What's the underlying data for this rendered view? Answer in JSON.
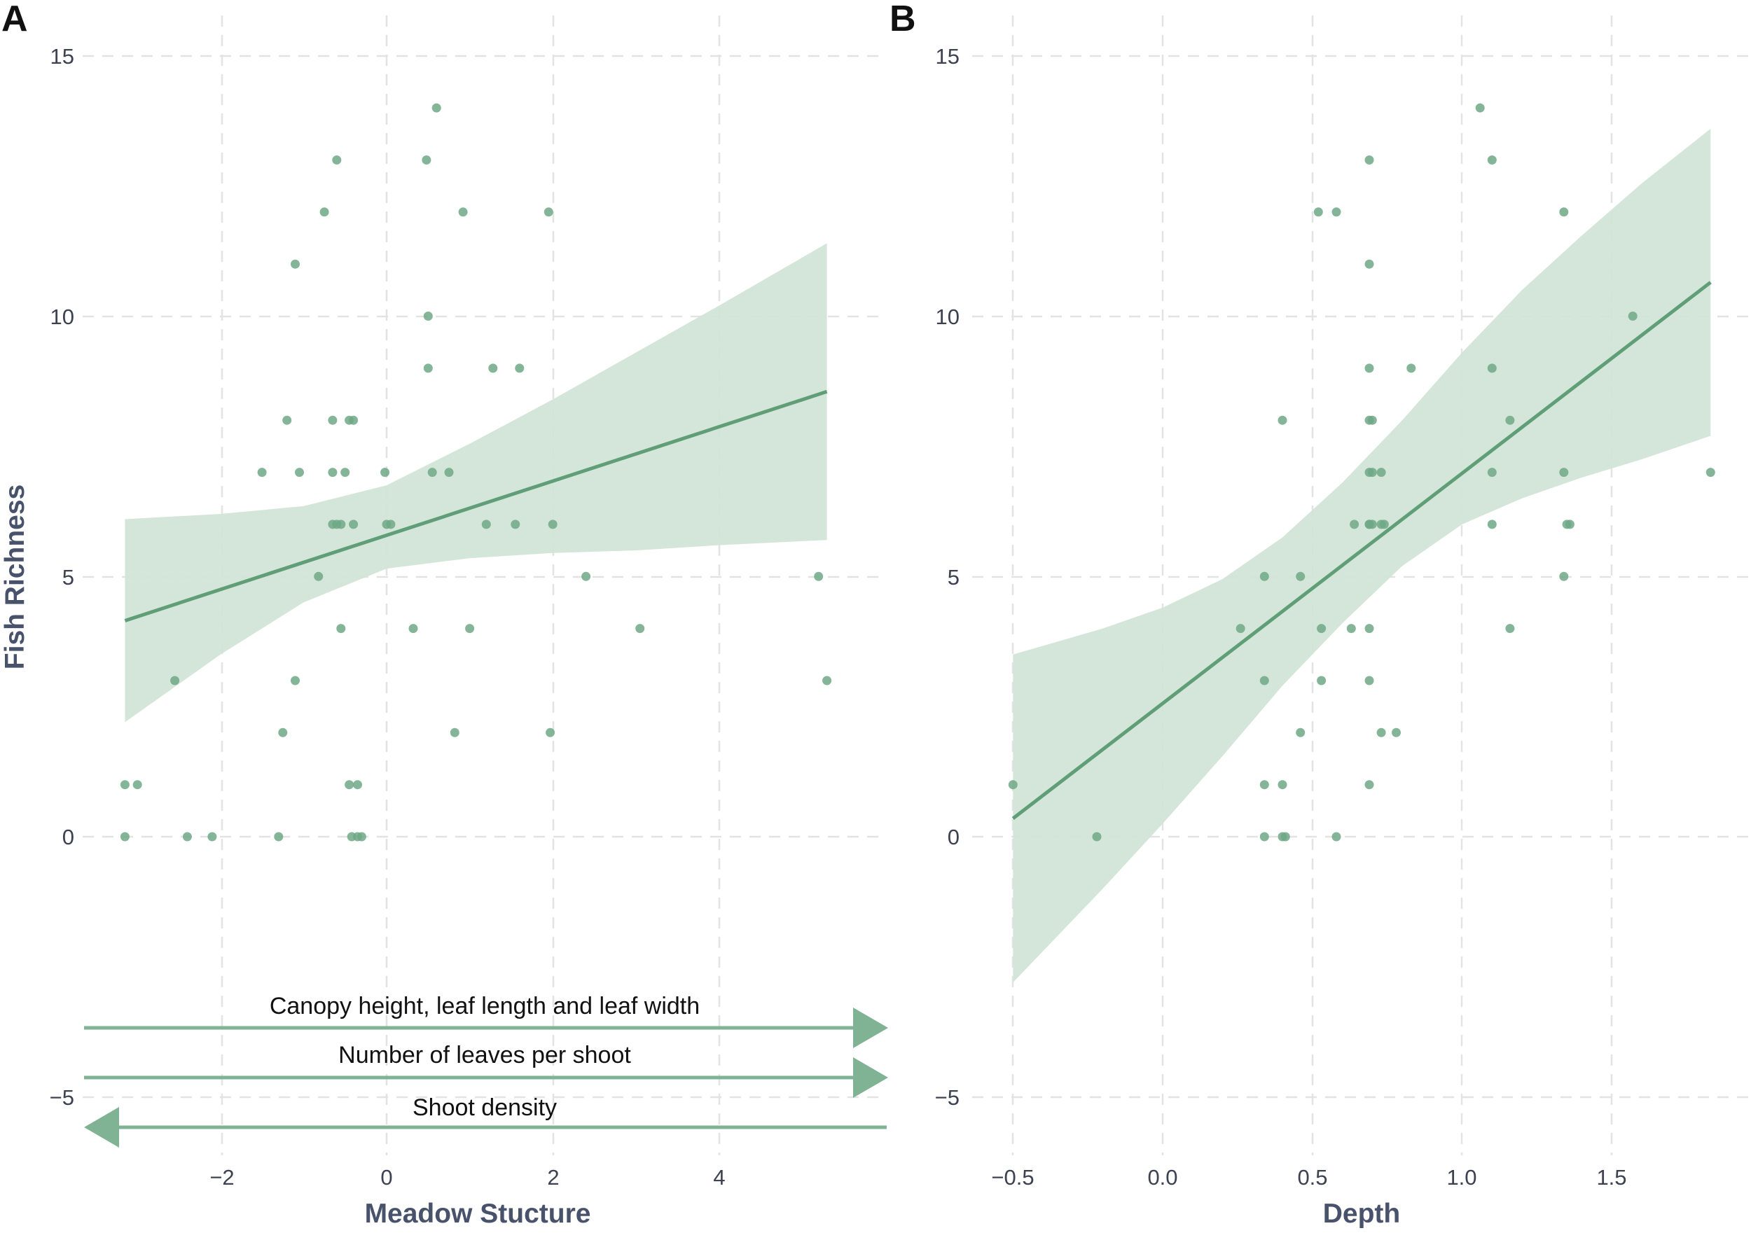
{
  "colors": {
    "point": "#6fa886",
    "line": "#5f9e77",
    "band": "#cfe3d5",
    "arrow": "#7fb394"
  },
  "chart_data": [
    {
      "type": "scatter",
      "panel_label": "A",
      "title": "",
      "xlabel": "Meadow Stucture",
      "ylabel": "Fish Richness",
      "xlim": [
        -3.6,
        6.2
      ],
      "ylim": [
        -6.2,
        15.4
      ],
      "xticks": [
        -2,
        0,
        2,
        4
      ],
      "yticks": [
        -5,
        0,
        5,
        10,
        15
      ],
      "xtick_labels": [
        "−2",
        "0",
        "2",
        "4"
      ],
      "ytick_labels": [
        "−5",
        "0",
        "5",
        "10",
        "15"
      ],
      "grid": true,
      "x": [
        -3.15,
        -3.0,
        -3.15,
        -2.4,
        -2.1,
        -2.55,
        -1.3,
        -1.25,
        -1.2,
        -1.1,
        -1.1,
        -1.5,
        -1.05,
        -0.75,
        -0.6,
        -0.65,
        -0.65,
        -0.6,
        -0.55,
        -0.5,
        -0.45,
        -0.4,
        -0.4,
        -0.45,
        -0.42,
        -0.35,
        -0.35,
        -0.3,
        -0.65,
        -0.82,
        -0.55,
        -0.02,
        0.0,
        0.05,
        0.32,
        0.6,
        0.48,
        0.5,
        0.5,
        0.55,
        0.75,
        0.82,
        0.92,
        1.0,
        1.2,
        1.28,
        1.55,
        1.6,
        1.95,
        2.0,
        1.97,
        2.4,
        3.05,
        5.2,
        5.3
      ],
      "y": [
        1,
        1,
        0,
        0,
        0,
        3,
        0,
        2,
        8,
        3,
        11,
        7,
        7,
        12,
        13,
        8,
        7,
        6,
        6,
        7,
        8,
        8,
        6,
        1,
        0,
        1,
        0,
        0,
        6,
        5,
        4,
        7,
        6,
        6,
        4,
        14,
        13,
        10,
        9,
        7,
        7,
        2,
        12,
        4,
        6,
        9,
        6,
        9,
        12,
        6,
        2,
        5,
        4,
        5,
        3
      ],
      "fit": {
        "x": [
          -3.15,
          5.3
        ],
        "y": [
          4.15,
          8.55
        ]
      },
      "ci_band": {
        "x": [
          -3.15,
          -2.0,
          -1.0,
          0.0,
          1.0,
          2.0,
          3.0,
          4.0,
          5.3
        ],
        "lower": [
          2.2,
          3.5,
          4.5,
          5.15,
          5.35,
          5.45,
          5.5,
          5.6,
          5.7
        ],
        "upper": [
          6.1,
          6.2,
          6.35,
          6.75,
          7.55,
          8.4,
          9.3,
          10.2,
          11.4
        ]
      },
      "annotations": [
        {
          "text": "Canopy height, leaf length and leaf width",
          "direction": "right"
        },
        {
          "text": "Number of leaves per shoot",
          "direction": "right"
        },
        {
          "text": "Shoot density",
          "direction": "left"
        }
      ]
    },
    {
      "type": "scatter",
      "panel_label": "B",
      "title": "",
      "xlabel": "Depth",
      "ylabel": "",
      "xlim": [
        -0.6,
        1.9
      ],
      "ylim": [
        -6.2,
        15.4
      ],
      "xticks": [
        -0.5,
        0.0,
        0.5,
        1.0,
        1.5
      ],
      "yticks": [
        -5,
        0,
        5,
        10,
        15
      ],
      "xtick_labels": [
        "−0.5",
        "0.0",
        "0.5",
        "1.0",
        "1.5"
      ],
      "ytick_labels": [
        "−5",
        "0",
        "5",
        "10",
        "15"
      ],
      "grid": true,
      "x": [
        -0.5,
        -0.22,
        0.26,
        0.34,
        0.34,
        0.34,
        0.34,
        0.4,
        0.4,
        0.4,
        0.41,
        0.46,
        0.46,
        0.52,
        0.53,
        0.53,
        0.58,
        0.58,
        0.63,
        0.64,
        0.69,
        0.69,
        0.69,
        0.69,
        0.69,
        0.69,
        0.69,
        0.69,
        0.69,
        0.69,
        0.7,
        0.7,
        0.7,
        0.73,
        0.73,
        0.73,
        0.74,
        0.78,
        0.83,
        1.06,
        1.1,
        1.1,
        1.1,
        1.1,
        1.16,
        1.16,
        1.34,
        1.34,
        1.34,
        1.35,
        1.36,
        1.57,
        1.83
      ],
      "y": [
        1,
        0,
        4,
        5,
        3,
        1,
        0,
        8,
        1,
        0,
        0,
        5,
        2,
        12,
        4,
        3,
        12,
        0,
        4,
        6,
        13,
        11,
        9,
        8,
        7,
        6,
        4,
        3,
        1,
        6,
        8,
        7,
        6,
        7,
        6,
        2,
        6,
        2,
        9,
        14,
        13,
        9,
        7,
        6,
        8,
        4,
        12,
        7,
        5,
        6,
        6,
        10,
        7
      ],
      "fit": {
        "x": [
          -0.5,
          1.83
        ],
        "y": [
          0.35,
          10.65
        ]
      },
      "ci_band": {
        "x": [
          -0.5,
          -0.2,
          0.0,
          0.2,
          0.4,
          0.6,
          0.7,
          0.8,
          1.0,
          1.2,
          1.4,
          1.6,
          1.83
        ],
        "lower": [
          -2.8,
          -1.0,
          0.25,
          1.55,
          2.9,
          4.1,
          4.65,
          5.2,
          6.0,
          6.5,
          6.9,
          7.25,
          7.7
        ],
        "upper": [
          3.5,
          4.0,
          4.4,
          4.95,
          5.75,
          6.8,
          7.4,
          8.0,
          9.3,
          10.5,
          11.55,
          12.55,
          13.6
        ]
      }
    }
  ]
}
